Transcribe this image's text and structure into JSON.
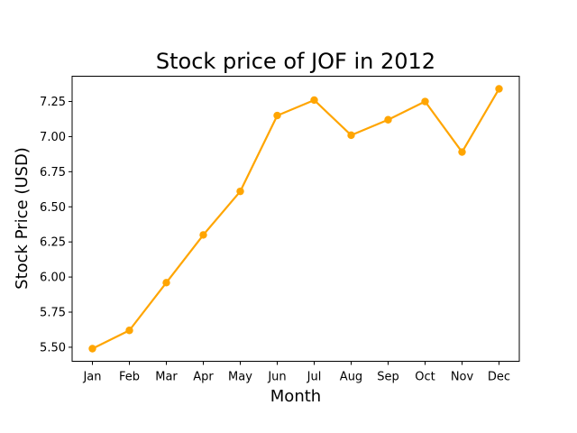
{
  "chart_data": {
    "type": "line",
    "title": "Stock price of JOF in 2012",
    "xlabel": "Month",
    "ylabel": "Stock Price (USD)",
    "categories": [
      "Jan",
      "Feb",
      "Mar",
      "Apr",
      "May",
      "Jun",
      "Jul",
      "Aug",
      "Sep",
      "Oct",
      "Nov",
      "Dec"
    ],
    "series": [
      {
        "values": [
          5.49,
          5.62,
          5.96,
          6.3,
          6.61,
          7.15,
          7.26,
          7.01,
          7.12,
          7.25,
          6.89,
          7.34
        ],
        "color": "#FFA500",
        "marker": "circle"
      }
    ],
    "ylim": [
      5.4,
      7.43
    ],
    "yticks": [
      5.5,
      5.75,
      6.0,
      6.25,
      6.5,
      6.75,
      7.0,
      7.25
    ],
    "ytick_labels": [
      "5.50",
      "5.75",
      "6.00",
      "6.25",
      "6.50",
      "6.75",
      "7.00",
      "7.25"
    ],
    "grid": false,
    "legend": "none"
  }
}
